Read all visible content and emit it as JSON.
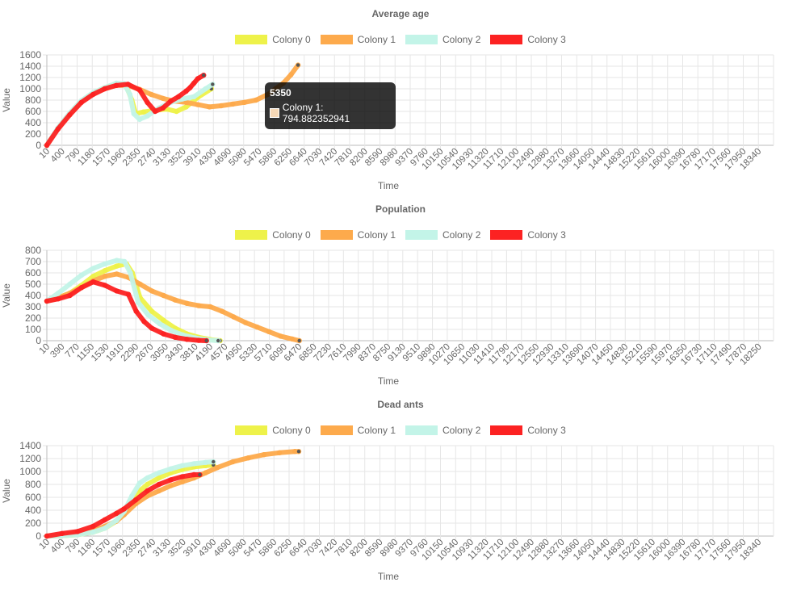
{
  "chart_data": [
    {
      "type": "line",
      "title": "Average age",
      "xlabel": "Time",
      "ylabel": "Value",
      "ylim": [
        0,
        1600
      ],
      "yticks": [
        0,
        200,
        400,
        600,
        800,
        1000,
        1200,
        1400,
        1600
      ],
      "xlim": [
        10,
        18730
      ],
      "xtick_labels": [
        "10",
        "400",
        "790",
        "1180",
        "1570",
        "1960",
        "2350",
        "2740",
        "3130",
        "3520",
        "3910",
        "4300",
        "4690",
        "5080",
        "5470",
        "5860",
        "6250",
        "6640",
        "7030",
        "7420",
        "7810",
        "8200",
        "8590",
        "8980",
        "9370",
        "9760",
        "10150",
        "10540",
        "10930",
        "11320",
        "11710",
        "12100",
        "12490",
        "12880",
        "13270",
        "13660",
        "14050",
        "14440",
        "14830",
        "15220",
        "15610",
        "16000",
        "16390",
        "16780",
        "17170",
        "17560",
        "17950",
        "18340"
      ],
      "legend_position": "top",
      "grid": true,
      "series": [
        {
          "name": "Colony 0",
          "color": "#eef24a",
          "x": [
            10,
            300,
            600,
            900,
            1200,
            1500,
            1800,
            2050,
            2200,
            2300,
            2500,
            2800,
            3100,
            3350,
            3600,
            3900,
            4250
          ],
          "y": [
            0,
            300,
            560,
            780,
            920,
            1020,
            1080,
            1060,
            800,
            560,
            590,
            620,
            640,
            600,
            680,
            850,
            1000
          ]
        },
        {
          "name": "Colony 1",
          "color": "#fdaa4c",
          "x": [
            10,
            300,
            600,
            900,
            1200,
            1500,
            1800,
            2100,
            2400,
            2700,
            3000,
            3300,
            3600,
            3900,
            4200,
            4500,
            4800,
            5100,
            5400,
            5700,
            5900,
            6100,
            6300,
            6480
          ],
          "y": [
            0,
            300,
            560,
            780,
            920,
            1000,
            1060,
            1060,
            990,
            900,
            830,
            780,
            760,
            720,
            680,
            700,
            730,
            760,
            800,
            900,
            1000,
            1100,
            1250,
            1420
          ]
        },
        {
          "name": "Colony 2",
          "color": "#c3f4e8",
          "x": [
            10,
            300,
            600,
            900,
            1200,
            1500,
            1800,
            2000,
            2150,
            2250,
            2400,
            2600,
            2900,
            3200,
            3500,
            3800,
            4100,
            4280
          ],
          "y": [
            0,
            310,
            570,
            790,
            930,
            1020,
            1100,
            1090,
            900,
            560,
            460,
            520,
            660,
            760,
            820,
            860,
            1000,
            1080
          ]
        },
        {
          "name": "Colony 3",
          "color": "#fc2222",
          "x": [
            10,
            300,
            600,
            900,
            1200,
            1500,
            1800,
            2100,
            2400,
            2600,
            2800,
            3000,
            3200,
            3400,
            3600,
            3700,
            3800,
            3900,
            4050
          ],
          "y": [
            0,
            290,
            540,
            760,
            900,
            1000,
            1060,
            1080,
            980,
            760,
            600,
            660,
            780,
            860,
            960,
            1020,
            1100,
            1180,
            1240
          ]
        }
      ],
      "tooltip": {
        "title": "5350",
        "text": "Colony 1: 794.882352941"
      }
    },
    {
      "type": "line",
      "title": "Population",
      "xlabel": "Time",
      "ylabel": "Value",
      "ylim": [
        0,
        800
      ],
      "yticks": [
        0,
        100,
        200,
        300,
        400,
        500,
        600,
        700,
        800
      ],
      "xlim": [
        10,
        18630
      ],
      "xtick_labels": [
        "10",
        "390",
        "770",
        "1150",
        "1530",
        "1910",
        "2290",
        "2670",
        "3050",
        "3430",
        "3810",
        "4190",
        "4570",
        "4950",
        "5330",
        "5710",
        "6090",
        "6470",
        "6850",
        "7230",
        "7610",
        "7990",
        "8370",
        "8750",
        "9130",
        "9510",
        "9890",
        "10270",
        "10650",
        "11030",
        "11410",
        "11790",
        "12170",
        "12550",
        "12930",
        "13310",
        "13690",
        "14070",
        "14450",
        "14830",
        "15210",
        "15590",
        "15970",
        "16350",
        "16730",
        "17110",
        "17490",
        "17870",
        "18250"
      ],
      "legend_position": "top",
      "grid": true,
      "series": [
        {
          "name": "Colony 0",
          "color": "#eef24a",
          "x": [
            10,
            300,
            600,
            900,
            1200,
            1500,
            1800,
            2050,
            2200,
            2400,
            2700,
            3000,
            3300,
            3600,
            3900,
            4200,
            4450
          ],
          "y": [
            350,
            380,
            420,
            490,
            570,
            620,
            660,
            680,
            600,
            380,
            260,
            180,
            110,
            60,
            30,
            10,
            0
          ]
        },
        {
          "name": "Colony 1",
          "color": "#fdaa4c",
          "x": [
            10,
            300,
            600,
            900,
            1200,
            1500,
            1800,
            2100,
            2400,
            2700,
            3000,
            3300,
            3600,
            3900,
            4200,
            4500,
            4800,
            5100,
            5400,
            5700,
            6000,
            6300,
            6480
          ],
          "y": [
            350,
            380,
            420,
            470,
            530,
            570,
            590,
            560,
            500,
            440,
            400,
            360,
            330,
            310,
            300,
            260,
            210,
            160,
            120,
            80,
            40,
            15,
            0
          ]
        },
        {
          "name": "Colony 2",
          "color": "#c3f4e8",
          "x": [
            10,
            300,
            600,
            900,
            1200,
            1500,
            1800,
            2000,
            2150,
            2350,
            2600,
            2900,
            3200,
            3500,
            3800,
            4100,
            4400
          ],
          "y": [
            350,
            420,
            500,
            580,
            640,
            680,
            710,
            700,
            600,
            340,
            230,
            150,
            90,
            50,
            25,
            8,
            0
          ]
        },
        {
          "name": "Colony 3",
          "color": "#fc2222",
          "x": [
            10,
            300,
            600,
            900,
            1200,
            1500,
            1800,
            2100,
            2300,
            2500,
            2700,
            3000,
            3300,
            3600,
            3900,
            4100
          ],
          "y": [
            350,
            370,
            400,
            470,
            520,
            490,
            440,
            410,
            260,
            170,
            110,
            60,
            30,
            12,
            3,
            0
          ]
        }
      ]
    },
    {
      "type": "line",
      "title": "Dead ants",
      "xlabel": "Time",
      "ylabel": "Value",
      "ylim": [
        0,
        1400
      ],
      "yticks": [
        0,
        200,
        400,
        600,
        800,
        1000,
        1200,
        1400
      ],
      "xlim": [
        10,
        18730
      ],
      "xtick_labels": [
        "10",
        "400",
        "790",
        "1180",
        "1570",
        "1960",
        "2350",
        "2740",
        "3130",
        "3520",
        "3910",
        "4300",
        "4690",
        "5080",
        "5470",
        "5860",
        "6250",
        "6640",
        "7030",
        "7420",
        "7810",
        "8200",
        "8590",
        "8980",
        "9370",
        "9760",
        "10150",
        "10540",
        "10930",
        "11320",
        "11710",
        "12100",
        "12490",
        "12880",
        "13270",
        "13660",
        "14050",
        "14440",
        "14830",
        "15220",
        "15610",
        "16000",
        "16390",
        "16780",
        "17170",
        "17560",
        "17950",
        "18340"
      ],
      "legend_position": "top",
      "grid": true,
      "series": [
        {
          "name": "Colony 0",
          "color": "#eef24a",
          "x": [
            10,
            400,
            800,
            1200,
            1500,
            1800,
            2000,
            2200,
            2400,
            2600,
            2900,
            3200,
            3500,
            3800,
            4100,
            4300
          ],
          "y": [
            0,
            5,
            20,
            60,
            120,
            230,
            360,
            560,
            700,
            800,
            900,
            980,
            1030,
            1070,
            1090,
            1100
          ]
        },
        {
          "name": "Colony 1",
          "color": "#fdaa4c",
          "x": [
            10,
            400,
            800,
            1200,
            1500,
            1800,
            2000,
            2300,
            2600,
            2900,
            3200,
            3500,
            3800,
            4100,
            4400,
            4800,
            5200,
            5600,
            6000,
            6400,
            6500
          ],
          "y": [
            0,
            10,
            40,
            80,
            150,
            230,
            330,
            500,
            620,
            700,
            780,
            840,
            900,
            980,
            1060,
            1150,
            1210,
            1260,
            1290,
            1310,
            1310
          ]
        },
        {
          "name": "Colony 2",
          "color": "#c3f4e8",
          "x": [
            10,
            400,
            800,
            1200,
            1500,
            1800,
            2000,
            2200,
            2400,
            2600,
            2900,
            3200,
            3500,
            3800,
            4100,
            4300
          ],
          "y": [
            0,
            5,
            20,
            60,
            120,
            240,
            380,
            620,
            820,
            900,
            980,
            1040,
            1090,
            1120,
            1140,
            1150
          ]
        },
        {
          "name": "Colony 3",
          "color": "#fc2222",
          "x": [
            10,
            400,
            800,
            1200,
            1500,
            1800,
            2000,
            2300,
            2600,
            2900,
            3200,
            3500,
            3800,
            3950
          ],
          "y": [
            0,
            40,
            70,
            150,
            250,
            350,
            420,
            560,
            700,
            800,
            870,
            920,
            950,
            950
          ]
        }
      ]
    }
  ]
}
